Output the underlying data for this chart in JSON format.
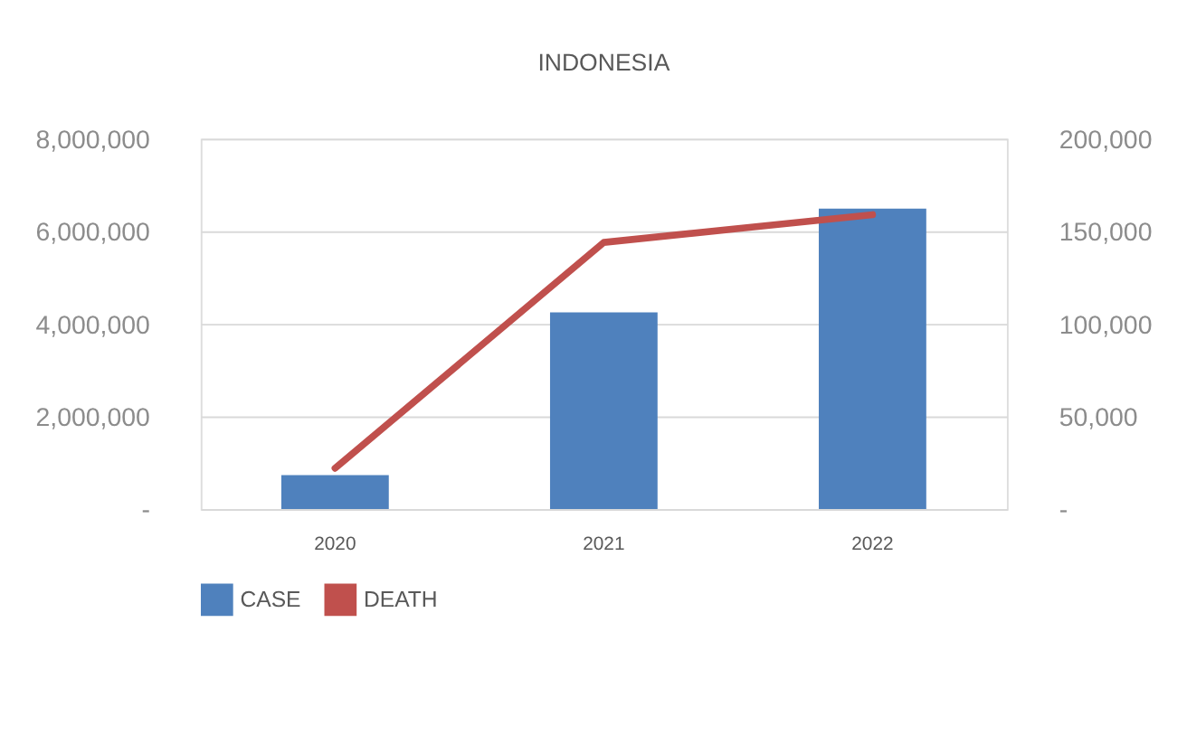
{
  "chart_data": {
    "type": "bar",
    "title": "INDONESIA",
    "categories": [
      "2020",
      "2021",
      "2022"
    ],
    "series": [
      {
        "name": "CASE",
        "color": "#4f81bd",
        "values": [
          730000,
          4250000,
          6490000
        ]
      },
      {
        "name": "DEATH",
        "type": "line",
        "axis": "y2",
        "color": "#c0504d",
        "values": [
          22000,
          144000,
          159000
        ]
      }
    ],
    "ylim": [
      0,
      8000000
    ],
    "yticks": [
      {
        "value": 0,
        "label": "-"
      },
      {
        "value": 2000000,
        "label": "2,000,000"
      },
      {
        "value": 4000000,
        "label": "4,000,000"
      },
      {
        "value": 6000000,
        "label": "6,000,000"
      },
      {
        "value": 8000000,
        "label": "8,000,000"
      }
    ],
    "y2lim": [
      0,
      200000
    ],
    "y2ticks": [
      {
        "value": 0,
        "label": "-"
      },
      {
        "value": 50000,
        "label": "50,000"
      },
      {
        "value": 100000,
        "label": "100,000"
      },
      {
        "value": 150000,
        "label": "150,000"
      },
      {
        "value": 200000,
        "label": "200,000"
      }
    ],
    "grid": "y",
    "legend": "bottom",
    "marker": "none",
    "line_style": "solid"
  }
}
